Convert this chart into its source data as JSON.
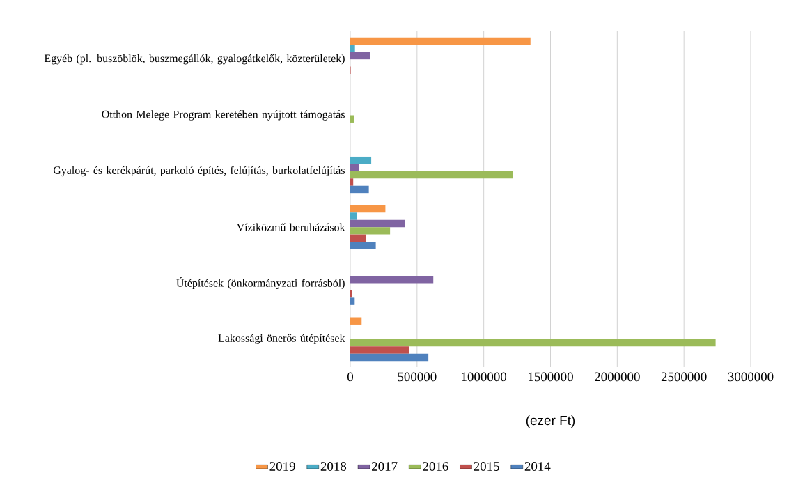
{
  "chart_data": {
    "type": "bar",
    "orientation": "horizontal",
    "xlabel": "(ezer Ft)",
    "categories": [
      "Egyéb (pl. buszöblök, buszmegállók, gyalogátkelők, közterületek)",
      "Otthon Melege Program keretében nyújtott támogatás",
      "Gyalog- és kerékpárút, parkoló építés, felújítás, burkolatfelújítás",
      "Víziközmű beruházások",
      "Útépítések (önkormányzati forrásból)",
      "Lakossági önerős útépítések"
    ],
    "series": [
      {
        "name": "2019",
        "color": "#f79646",
        "values": [
          1350000,
          null,
          null,
          263000,
          null,
          85000
        ]
      },
      {
        "name": "2018",
        "color": "#4bacc6",
        "values": [
          35000,
          null,
          157000,
          48000,
          null,
          null
        ]
      },
      {
        "name": "2017",
        "color": "#8064a2",
        "values": [
          150000,
          null,
          65000,
          407000,
          622000,
          null
        ]
      },
      {
        "name": "2016",
        "color": "#9bbb59",
        "values": [
          null,
          28000,
          1219000,
          298000,
          null,
          2737000
        ]
      },
      {
        "name": "2015",
        "color": "#c0504d",
        "values": [
          3000,
          null,
          22000,
          117000,
          13000,
          442000
        ]
      },
      {
        "name": "2014",
        "color": "#4f81bd",
        "values": [
          null,
          null,
          139000,
          191000,
          33000,
          585000
        ]
      }
    ],
    "xlim": [
      0,
      3000000
    ],
    "xticks": [
      0,
      500000,
      1000000,
      1500000,
      2000000,
      2500000,
      3000000
    ],
    "grid": "x",
    "legend": "bottom"
  }
}
